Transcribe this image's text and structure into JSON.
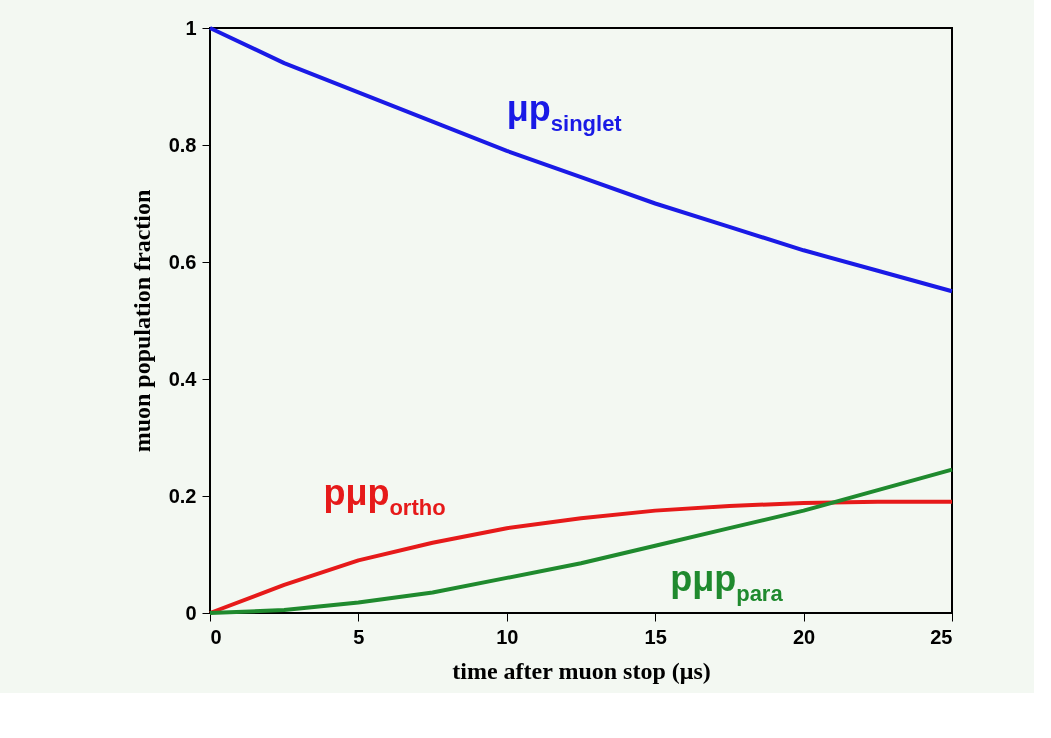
{
  "chart_data": {
    "type": "line",
    "xlabel": "time after muon stop (μs)",
    "ylabel": "muon population fraction",
    "x": [
      0,
      2.5,
      5,
      7.5,
      10,
      12.5,
      15,
      17.5,
      20,
      22.5,
      25
    ],
    "xlim": [
      0,
      25
    ],
    "xticks": [
      0,
      5,
      10,
      15,
      20,
      25
    ],
    "ylim": [
      0,
      1
    ],
    "yticks": [
      0,
      0.2,
      0.4,
      0.6,
      0.8,
      1
    ],
    "grid": false,
    "legend": false,
    "marker": "none",
    "line_style": "solid",
    "series": [
      {
        "name": "μp$_{singlet}$",
        "color": "#1a1ae6",
        "values": [
          1,
          0.94,
          0.89,
          0.84,
          0.79,
          0.745,
          0.7,
          0.66,
          0.62,
          0.585,
          0.55
        ]
      },
      {
        "name": "pμp$_{ortho}$",
        "color": "#e61a1a",
        "values": [
          0,
          0.048,
          0.09,
          0.12,
          0.145,
          0.162,
          0.175,
          0.183,
          0.188,
          0.19,
          0.19
        ]
      },
      {
        "name": "pμp$_{para}$",
        "color": "#1f8a2e",
        "values": [
          0,
          0.005,
          0.018,
          0.035,
          0.06,
          0.085,
          0.115,
          0.145,
          0.175,
          0.21,
          0.245
        ]
      }
    ]
  }
}
